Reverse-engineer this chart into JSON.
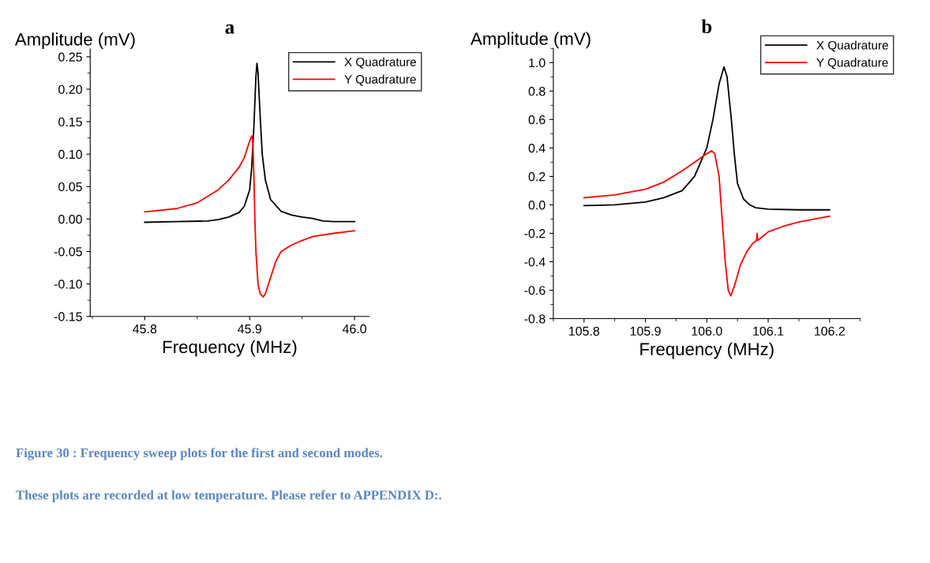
{
  "chart_data": [
    {
      "type": "line",
      "title": "a",
      "xlabel": "Frequency (MHz)",
      "ylabel": "Amplitude (mV)",
      "xlim": [
        45.748,
        46.014
      ],
      "ylim": [
        -0.15,
        0.262
      ],
      "xticks": [
        45.8,
        45.9,
        {
          "value": 46.0,
          "label": "46.0"
        }
      ],
      "yticks": [
        {
          "value": -0.15,
          "label": "-0.15"
        },
        {
          "value": -0.1,
          "label": "-0.10"
        },
        {
          "value": -0.05,
          "label": "-0.05"
        },
        {
          "value": 0,
          "label": "0.00"
        },
        {
          "value": 0.05,
          "label": "0.05"
        },
        {
          "value": 0.1,
          "label": "0.10"
        },
        {
          "value": 0.15,
          "label": "0.15"
        },
        {
          "value": 0.2,
          "label": "0.20"
        },
        {
          "value": 0.25,
          "label": "0.25"
        }
      ],
      "grid": false,
      "legend": "top right",
      "series": [
        {
          "name": "X Quadrature",
          "color": "#000000",
          "x": [
            45.8,
            45.83,
            45.86,
            45.87,
            45.88,
            45.89,
            45.895,
            45.9,
            45.902,
            45.904,
            45.906,
            45.907,
            45.908,
            45.91,
            45.912,
            45.915,
            45.92,
            45.93,
            45.94,
            45.95,
            45.96,
            45.97,
            45.98,
            46.0
          ],
          "values": [
            -0.005,
            -0.004,
            -0.003,
            -0.001,
            0.003,
            0.01,
            0.02,
            0.045,
            0.08,
            0.14,
            0.22,
            0.24,
            0.225,
            0.16,
            0.1,
            0.06,
            0.03,
            0.012,
            0.006,
            0.003,
            0.001,
            -0.003,
            -0.004,
            -0.004
          ]
        },
        {
          "name": "Y Quadrature",
          "color": "#ff0000",
          "x": [
            45.8,
            45.83,
            45.85,
            45.87,
            45.88,
            45.89,
            45.895,
            45.9,
            45.902,
            45.903,
            45.904,
            45.905,
            45.906,
            45.908,
            45.91,
            45.913,
            45.915,
            45.92,
            45.925,
            45.93,
            45.94,
            45.95,
            45.96,
            45.98,
            46.0
          ],
          "values": [
            0.011,
            0.016,
            0.025,
            0.045,
            0.06,
            0.08,
            0.095,
            0.12,
            0.128,
            0.12,
            0.07,
            0.0,
            -0.05,
            -0.1,
            -0.115,
            -0.12,
            -0.115,
            -0.09,
            -0.065,
            -0.05,
            -0.04,
            -0.033,
            -0.027,
            -0.022,
            -0.018
          ]
        }
      ]
    },
    {
      "type": "line",
      "title": "b",
      "xlabel": "Frequency (MHz)",
      "ylabel": "Amplitude (mV)",
      "xlim": [
        105.75,
        106.25
      ],
      "ylim": [
        -0.8,
        1.1
      ],
      "xticks": [
        105.8,
        105.9,
        {
          "value": 106.0,
          "label": "106.0"
        },
        106.1,
        106.2
      ],
      "yticks": [
        -0.8,
        -0.6,
        -0.4,
        -0.2,
        {
          "value": 0,
          "label": "0.0"
        },
        0.2,
        0.4,
        0.6,
        0.8,
        {
          "value": 1.0,
          "label": "1.0"
        }
      ],
      "grid": false,
      "legend": "top right",
      "series": [
        {
          "name": "X Quadrature",
          "color": "#000000",
          "x": [
            105.8,
            105.85,
            105.9,
            105.93,
            105.96,
            105.98,
            105.99,
            106.0,
            106.01,
            106.02,
            106.028,
            106.033,
            106.04,
            106.045,
            106.05,
            106.06,
            106.07,
            106.08,
            106.1,
            106.15,
            106.2
          ],
          "values": [
            -0.005,
            0.0,
            0.02,
            0.05,
            0.1,
            0.2,
            0.3,
            0.4,
            0.6,
            0.85,
            0.97,
            0.9,
            0.6,
            0.35,
            0.15,
            0.04,
            0.0,
            -0.02,
            -0.03,
            -0.035,
            -0.035
          ]
        },
        {
          "name": "Y Quadrature",
          "color": "#ff0000",
          "x": [
            105.8,
            105.85,
            105.9,
            105.93,
            105.96,
            105.98,
            106.0,
            106.008,
            106.013,
            106.02,
            106.025,
            106.03,
            106.035,
            106.039,
            106.045,
            106.055,
            106.065,
            106.075,
            106.081,
            106.082,
            106.083,
            106.1,
            106.125,
            106.15,
            106.2
          ],
          "values": [
            0.05,
            0.07,
            0.11,
            0.16,
            0.24,
            0.3,
            0.36,
            0.38,
            0.36,
            0.2,
            -0.1,
            -0.4,
            -0.6,
            -0.64,
            -0.57,
            -0.42,
            -0.33,
            -0.27,
            -0.25,
            -0.2,
            -0.25,
            -0.19,
            -0.15,
            -0.12,
            -0.08
          ]
        }
      ],
      "annotations": [
        "Figure 30 : Frequency sweep plots for the first and second modes.",
        "These plots are recorded at low temperature. Please refer to APPENDIX D:."
      ]
    }
  ]
}
